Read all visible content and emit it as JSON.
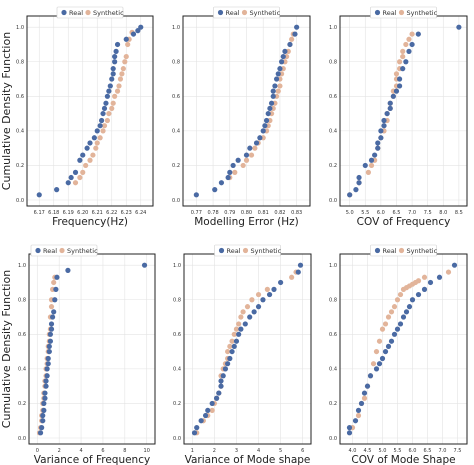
{
  "chart_data": [
    {
      "type": "scatter",
      "xlabel": "Frequency(Hz)",
      "ylabel": "Cumulative Density Function",
      "xlim": [
        6.165,
        6.245
      ],
      "ylim": [
        0,
        1.03
      ],
      "xticks": [
        "6.17",
        "6.18",
        "6.19",
        "6.20",
        "6.21",
        "6.22",
        "6.23",
        "6.24"
      ],
      "xtick_values": [
        6.17,
        6.18,
        6.19,
        6.2,
        6.21,
        6.22,
        6.23,
        6.24
      ],
      "yticks": [
        "0.0",
        "0.2",
        "0.4",
        "0.6",
        "0.8",
        "1.0"
      ],
      "legend": "top-center",
      "series": [
        {
          "name": "Real",
          "color": "#4a6aa3",
          "x": [
            6.17,
            6.182,
            6.19,
            6.192,
            6.195,
            6.198,
            6.2,
            6.203,
            6.205,
            6.208,
            6.21,
            6.212,
            6.213,
            6.214,
            6.215,
            6.216,
            6.217,
            6.218,
            6.219,
            6.22,
            6.221,
            6.221,
            6.222,
            6.222,
            6.223,
            6.224,
            6.23,
            6.235,
            6.238,
            6.24
          ],
          "y": [
            0.03,
            0.06,
            0.1,
            0.13,
            0.16,
            0.23,
            0.26,
            0.3,
            0.33,
            0.36,
            0.4,
            0.43,
            0.46,
            0.5,
            0.53,
            0.56,
            0.6,
            0.63,
            0.66,
            0.7,
            0.73,
            0.76,
            0.8,
            0.83,
            0.86,
            0.9,
            0.93,
            0.96,
            0.98,
            1.0
          ]
        },
        {
          "name": "Synthetic",
          "color": "#e2b49a",
          "x": [
            6.195,
            6.198,
            6.2,
            6.202,
            6.205,
            6.207,
            6.209,
            6.21,
            6.212,
            6.214,
            6.215,
            6.217,
            6.218,
            6.22,
            6.221,
            6.222,
            6.224,
            6.225,
            6.226,
            6.227,
            6.228,
            6.229,
            6.23,
            6.231,
            6.232,
            6.234
          ],
          "y": [
            0.1,
            0.13,
            0.16,
            0.2,
            0.23,
            0.26,
            0.3,
            0.33,
            0.36,
            0.4,
            0.43,
            0.46,
            0.5,
            0.53,
            0.56,
            0.6,
            0.63,
            0.66,
            0.7,
            0.73,
            0.76,
            0.8,
            0.83,
            0.9,
            0.93,
            0.97
          ]
        }
      ]
    },
    {
      "type": "scatter",
      "xlabel": "Modelling Error (Hz)",
      "ylabel": "",
      "xlim": [
        0.765,
        0.835
      ],
      "ylim": [
        0,
        1.03
      ],
      "xticks": [
        "0.77",
        "0.78",
        "0.79",
        "0.80",
        "0.81",
        "0.82",
        "0.83"
      ],
      "xtick_values": [
        0.77,
        0.78,
        0.79,
        0.8,
        0.81,
        0.82,
        0.83
      ],
      "yticks": [
        "0.0",
        "0.2",
        "0.4",
        "0.6",
        "0.8",
        "1.0"
      ],
      "legend": "top-center",
      "series": [
        {
          "name": "Real",
          "color": "#4a6aa3",
          "x": [
            0.77,
            0.781,
            0.785,
            0.789,
            0.79,
            0.792,
            0.795,
            0.8,
            0.802,
            0.806,
            0.808,
            0.81,
            0.811,
            0.812,
            0.813,
            0.814,
            0.815,
            0.816,
            0.816,
            0.817,
            0.818,
            0.819,
            0.82,
            0.821,
            0.822,
            0.823,
            0.826,
            0.829,
            0.83
          ],
          "y": [
            0.03,
            0.06,
            0.1,
            0.13,
            0.16,
            0.2,
            0.23,
            0.26,
            0.3,
            0.33,
            0.36,
            0.4,
            0.43,
            0.46,
            0.5,
            0.53,
            0.56,
            0.6,
            0.63,
            0.66,
            0.7,
            0.73,
            0.76,
            0.8,
            0.83,
            0.86,
            0.9,
            0.96,
            1.0
          ]
        },
        {
          "name": "Synthetic",
          "color": "#e2b49a",
          "x": [
            0.79,
            0.793,
            0.798,
            0.8,
            0.803,
            0.805,
            0.807,
            0.81,
            0.812,
            0.813,
            0.814,
            0.815,
            0.816,
            0.817,
            0.818,
            0.819,
            0.82,
            0.82,
            0.821,
            0.822,
            0.823,
            0.824,
            0.825,
            0.826,
            0.827,
            0.828
          ],
          "y": [
            0.13,
            0.16,
            0.2,
            0.23,
            0.26,
            0.3,
            0.33,
            0.36,
            0.4,
            0.43,
            0.46,
            0.5,
            0.53,
            0.56,
            0.6,
            0.63,
            0.66,
            0.7,
            0.73,
            0.76,
            0.8,
            0.83,
            0.86,
            0.9,
            0.93,
            0.96
          ]
        }
      ]
    },
    {
      "type": "scatter",
      "xlabel": "COV of Frequency",
      "ylabel": "",
      "xlim": [
        4.85,
        8.6
      ],
      "ylim": [
        0,
        1.03
      ],
      "xticks": [
        "5.0",
        "5.5",
        "6.0",
        "6.5",
        "7.0",
        "7.5",
        "8.0",
        "8.5"
      ],
      "xtick_values": [
        5.0,
        5.5,
        6.0,
        6.5,
        7.0,
        7.5,
        8.0,
        8.5
      ],
      "yticks": [
        "0.0",
        "0.2",
        "0.4",
        "0.6",
        "0.8",
        "1.0"
      ],
      "legend": "top-center",
      "series": [
        {
          "name": "Real",
          "color": "#4a6aa3",
          "x": [
            5.0,
            5.2,
            5.3,
            5.3,
            5.5,
            5.7,
            5.8,
            5.9,
            5.9,
            6.0,
            6.0,
            6.1,
            6.1,
            6.2,
            6.3,
            6.3,
            6.4,
            6.5,
            6.6,
            6.6,
            6.7,
            6.8,
            6.9,
            7.0,
            7.2,
            8.5
          ],
          "y": [
            0.03,
            0.06,
            0.1,
            0.13,
            0.2,
            0.23,
            0.26,
            0.3,
            0.33,
            0.36,
            0.4,
            0.43,
            0.46,
            0.5,
            0.53,
            0.56,
            0.6,
            0.63,
            0.66,
            0.7,
            0.76,
            0.8,
            0.86,
            0.9,
            0.96,
            1.0
          ]
        },
        {
          "name": "Synthetic",
          "color": "#e2b49a",
          "x": [
            5.0,
            5.3,
            5.6,
            5.7,
            5.8,
            5.9,
            6.0,
            6.1,
            6.1,
            6.2,
            6.2,
            6.3,
            6.3,
            6.4,
            6.4,
            6.5,
            6.5,
            6.5,
            6.6,
            6.6,
            6.7,
            6.7,
            6.8,
            6.9,
            7.0
          ],
          "y": [
            0.03,
            0.1,
            0.16,
            0.2,
            0.23,
            0.3,
            0.36,
            0.4,
            0.43,
            0.46,
            0.5,
            0.53,
            0.56,
            0.6,
            0.63,
            0.66,
            0.7,
            0.73,
            0.76,
            0.8,
            0.83,
            0.86,
            0.9,
            0.93,
            0.96
          ]
        }
      ]
    },
    {
      "type": "scatter",
      "xlabel": "Variance of Frequency",
      "ylabel": "Cumulative Density Function",
      "xlim": [
        -0.3,
        10.3
      ],
      "ylim": [
        0,
        1.03
      ],
      "xticks": [
        "0",
        "2",
        "4",
        "6",
        "8",
        "10"
      ],
      "xtick_values": [
        0,
        2,
        4,
        6,
        8,
        10
      ],
      "yticks": [
        "0.0",
        "0.2",
        "0.4",
        "0.6",
        "0.8",
        "1.0"
      ],
      "legend": "top-left",
      "series": [
        {
          "name": "Real",
          "color": "#4a6aa3",
          "x": [
            0.3,
            0.4,
            0.5,
            0.5,
            0.6,
            0.6,
            0.7,
            0.7,
            0.8,
            0.8,
            0.9,
            0.9,
            1.0,
            1.0,
            1.1,
            1.1,
            1.2,
            1.2,
            1.3,
            1.3,
            1.4,
            1.5,
            1.6,
            1.7,
            1.8,
            2.8,
            9.8
          ],
          "y": [
            0.03,
            0.06,
            0.1,
            0.13,
            0.16,
            0.2,
            0.23,
            0.26,
            0.3,
            0.33,
            0.36,
            0.4,
            0.43,
            0.46,
            0.5,
            0.53,
            0.56,
            0.6,
            0.63,
            0.66,
            0.7,
            0.73,
            0.8,
            0.86,
            0.93,
            0.97,
            1.0
          ]
        },
        {
          "name": "Synthetic",
          "color": "#e2b49a",
          "x": [
            0.2,
            0.3,
            0.4,
            0.4,
            0.5,
            0.5,
            0.6,
            0.6,
            0.7,
            0.7,
            0.8,
            0.8,
            0.9,
            0.9,
            1.0,
            1.0,
            1.1,
            1.1,
            1.2,
            1.2,
            1.3,
            1.3,
            1.4,
            1.5,
            1.6
          ],
          "y": [
            0.03,
            0.06,
            0.1,
            0.13,
            0.16,
            0.2,
            0.23,
            0.26,
            0.3,
            0.33,
            0.36,
            0.4,
            0.43,
            0.46,
            0.5,
            0.53,
            0.56,
            0.6,
            0.63,
            0.7,
            0.76,
            0.8,
            0.86,
            0.9,
            0.93
          ]
        }
      ]
    },
    {
      "type": "scatter",
      "xlabel": "Variance of Mode shape",
      "ylabel": "",
      "xlim": [
        0.85,
        6.15
      ],
      "ylim": [
        0,
        1.03
      ],
      "xticks": [
        "1",
        "2",
        "3",
        "4",
        "5",
        "6"
      ],
      "xtick_values": [
        1,
        2,
        3,
        4,
        5,
        6
      ],
      "yticks": [
        "0.0",
        "0.2",
        "0.4",
        "0.6",
        "0.8",
        "1.0"
      ],
      "legend": "top-center",
      "series": [
        {
          "name": "Real",
          "color": "#4a6aa3",
          "x": [
            1.1,
            1.2,
            1.4,
            1.6,
            1.7,
            1.9,
            2.1,
            2.2,
            2.3,
            2.3,
            2.4,
            2.5,
            2.6,
            2.7,
            2.8,
            2.9,
            3.0,
            3.1,
            3.2,
            3.4,
            3.6,
            3.8,
            4.0,
            4.2,
            4.5,
            4.7,
            5.0,
            5.8,
            5.9
          ],
          "y": [
            0.03,
            0.06,
            0.1,
            0.13,
            0.16,
            0.2,
            0.23,
            0.26,
            0.3,
            0.33,
            0.36,
            0.4,
            0.43,
            0.46,
            0.5,
            0.53,
            0.56,
            0.6,
            0.63,
            0.66,
            0.7,
            0.73,
            0.76,
            0.8,
            0.83,
            0.86,
            0.9,
            0.96,
            1.0
          ]
        },
        {
          "name": "Synthetic",
          "color": "#e2b49a",
          "x": [
            1.2,
            1.5,
            1.7,
            1.9,
            2.0,
            2.1,
            2.2,
            2.3,
            2.3,
            2.4,
            2.5,
            2.6,
            2.6,
            2.7,
            2.8,
            2.9,
            3.0,
            3.1,
            3.2,
            3.3,
            3.5,
            3.7,
            4.0,
            4.4,
            5.5,
            5.7
          ],
          "y": [
            0.03,
            0.1,
            0.13,
            0.16,
            0.2,
            0.23,
            0.26,
            0.3,
            0.36,
            0.4,
            0.43,
            0.46,
            0.5,
            0.53,
            0.56,
            0.6,
            0.63,
            0.66,
            0.7,
            0.73,
            0.76,
            0.8,
            0.83,
            0.86,
            0.93,
            0.96
          ]
        }
      ]
    },
    {
      "type": "scatter",
      "xlabel": "COV of Mode Shape",
      "ylabel": "",
      "xlim": [
        3.75,
        7.65
      ],
      "ylim": [
        0,
        1.03
      ],
      "xticks": [
        "4.0",
        "4.5",
        "5.0",
        "5.5",
        "6.0",
        "6.5",
        "7.0",
        "7.5"
      ],
      "xtick_values": [
        4.0,
        4.5,
        5.0,
        5.5,
        6.0,
        6.5,
        7.0,
        7.5
      ],
      "yticks": [
        "0.0",
        "0.2",
        "0.4",
        "0.6",
        "0.8",
        "1.0"
      ],
      "legend": "top-center",
      "series": [
        {
          "name": "Real",
          "color": "#4a6aa3",
          "x": [
            3.9,
            3.9,
            4.1,
            4.2,
            4.3,
            4.4,
            4.5,
            4.6,
            4.8,
            4.9,
            5.0,
            5.1,
            5.2,
            5.3,
            5.4,
            5.5,
            5.6,
            5.7,
            5.8,
            5.9,
            6.0,
            6.2,
            6.4,
            6.6,
            6.9,
            7.4
          ],
          "y": [
            0.03,
            0.06,
            0.1,
            0.16,
            0.2,
            0.26,
            0.3,
            0.36,
            0.4,
            0.43,
            0.46,
            0.5,
            0.53,
            0.56,
            0.6,
            0.63,
            0.66,
            0.7,
            0.73,
            0.76,
            0.8,
            0.83,
            0.86,
            0.9,
            0.93,
            1.0
          ]
        },
        {
          "name": "Synthetic",
          "color": "#e2b49a",
          "x": [
            4.0,
            4.2,
            4.3,
            4.4,
            4.5,
            4.6,
            4.7,
            4.8,
            4.9,
            5.0,
            5.1,
            5.2,
            5.3,
            5.4,
            5.5,
            5.6,
            5.7,
            5.8,
            5.9,
            6.0,
            6.1,
            6.2,
            6.4,
            7.2
          ],
          "y": [
            0.06,
            0.13,
            0.2,
            0.23,
            0.3,
            0.36,
            0.43,
            0.5,
            0.56,
            0.63,
            0.66,
            0.7,
            0.73,
            0.76,
            0.8,
            0.83,
            0.86,
            0.87,
            0.88,
            0.89,
            0.9,
            0.91,
            0.93,
            0.96
          ]
        }
      ]
    }
  ]
}
